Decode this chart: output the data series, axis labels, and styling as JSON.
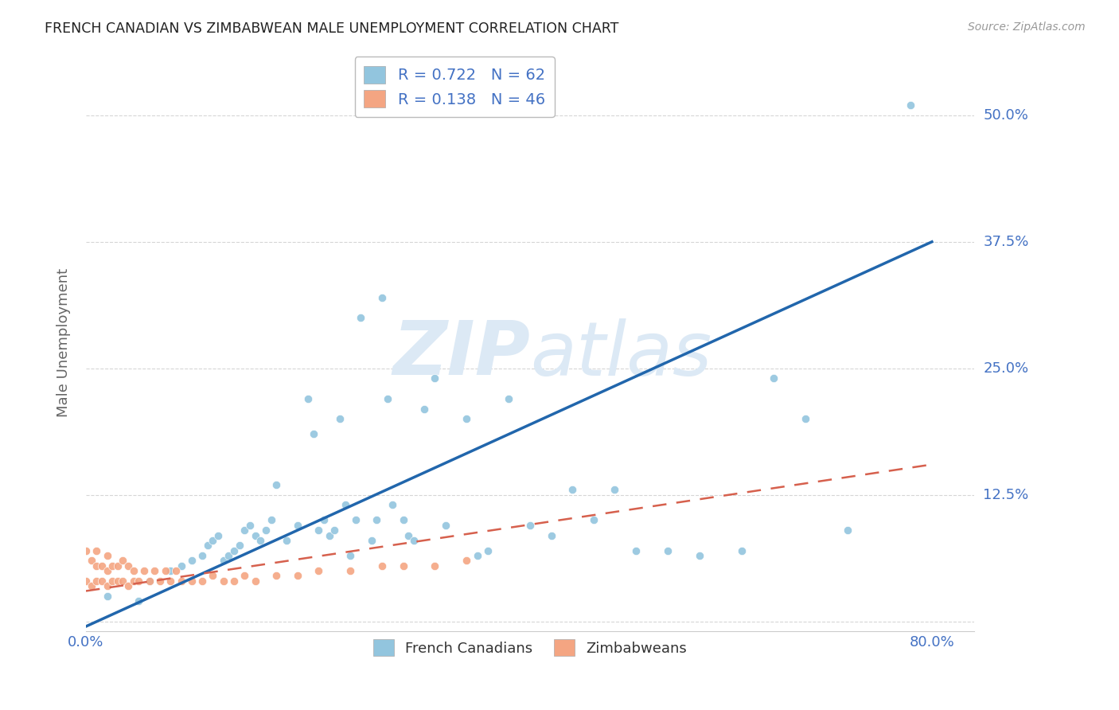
{
  "title": "FRENCH CANADIAN VS ZIMBABWEAN MALE UNEMPLOYMENT CORRELATION CHART",
  "source": "Source: ZipAtlas.com",
  "ylabel": "Male Unemployment",
  "xlim": [
    0.0,
    0.84
  ],
  "ylim": [
    -0.01,
    0.56
  ],
  "ytick_positions": [
    0.0,
    0.125,
    0.25,
    0.375,
    0.5
  ],
  "ytick_labels": [
    "",
    "12.5%",
    "25.0%",
    "37.5%",
    "50.0%"
  ],
  "blue_color": "#92c5de",
  "pink_color": "#f4a582",
  "blue_line_color": "#2166ac",
  "pink_line_color": "#d6604d",
  "title_color": "#222222",
  "tick_color": "#4472c4",
  "watermark_color": "#dce9f5",
  "french_canadians_x": [
    0.02,
    0.05,
    0.06,
    0.08,
    0.09,
    0.1,
    0.11,
    0.115,
    0.12,
    0.125,
    0.13,
    0.135,
    0.14,
    0.145,
    0.15,
    0.155,
    0.16,
    0.165,
    0.17,
    0.175,
    0.18,
    0.19,
    0.2,
    0.21,
    0.215,
    0.22,
    0.225,
    0.23,
    0.235,
    0.24,
    0.245,
    0.25,
    0.255,
    0.26,
    0.27,
    0.275,
    0.28,
    0.285,
    0.29,
    0.3,
    0.305,
    0.31,
    0.32,
    0.33,
    0.34,
    0.36,
    0.37,
    0.38,
    0.4,
    0.42,
    0.44,
    0.46,
    0.48,
    0.5,
    0.52,
    0.55,
    0.58,
    0.62,
    0.65,
    0.68,
    0.72,
    0.78
  ],
  "french_canadians_y": [
    0.025,
    0.02,
    0.04,
    0.05,
    0.055,
    0.06,
    0.065,
    0.075,
    0.08,
    0.085,
    0.06,
    0.065,
    0.07,
    0.075,
    0.09,
    0.095,
    0.085,
    0.08,
    0.09,
    0.1,
    0.135,
    0.08,
    0.095,
    0.22,
    0.185,
    0.09,
    0.1,
    0.085,
    0.09,
    0.2,
    0.115,
    0.065,
    0.1,
    0.3,
    0.08,
    0.1,
    0.32,
    0.22,
    0.115,
    0.1,
    0.085,
    0.08,
    0.21,
    0.24,
    0.095,
    0.2,
    0.065,
    0.07,
    0.22,
    0.095,
    0.085,
    0.13,
    0.1,
    0.13,
    0.07,
    0.07,
    0.065,
    0.07,
    0.24,
    0.2,
    0.09,
    0.51
  ],
  "zimbabweans_x": [
    0.0,
    0.0,
    0.005,
    0.005,
    0.01,
    0.01,
    0.01,
    0.015,
    0.015,
    0.02,
    0.02,
    0.02,
    0.025,
    0.025,
    0.03,
    0.03,
    0.035,
    0.035,
    0.04,
    0.04,
    0.045,
    0.045,
    0.05,
    0.055,
    0.06,
    0.065,
    0.07,
    0.075,
    0.08,
    0.085,
    0.09,
    0.1,
    0.11,
    0.12,
    0.13,
    0.14,
    0.15,
    0.16,
    0.18,
    0.2,
    0.22,
    0.25,
    0.28,
    0.3,
    0.33,
    0.36
  ],
  "zimbabweans_y": [
    0.04,
    0.07,
    0.035,
    0.06,
    0.04,
    0.055,
    0.07,
    0.04,
    0.055,
    0.035,
    0.05,
    0.065,
    0.04,
    0.055,
    0.04,
    0.055,
    0.04,
    0.06,
    0.035,
    0.055,
    0.04,
    0.05,
    0.04,
    0.05,
    0.04,
    0.05,
    0.04,
    0.05,
    0.04,
    0.05,
    0.04,
    0.04,
    0.04,
    0.045,
    0.04,
    0.04,
    0.045,
    0.04,
    0.045,
    0.045,
    0.05,
    0.05,
    0.055,
    0.055,
    0.055,
    0.06
  ],
  "fc_trend_x0": 0.0,
  "fc_trend_y0": -0.005,
  "fc_trend_x1": 0.8,
  "fc_trend_y1": 0.375,
  "zim_trend_x0": 0.0,
  "zim_trend_y0": 0.03,
  "zim_trend_x1": 0.8,
  "zim_trend_y1": 0.155,
  "background_color": "#ffffff",
  "grid_color": "#cccccc",
  "marker_size": 55
}
